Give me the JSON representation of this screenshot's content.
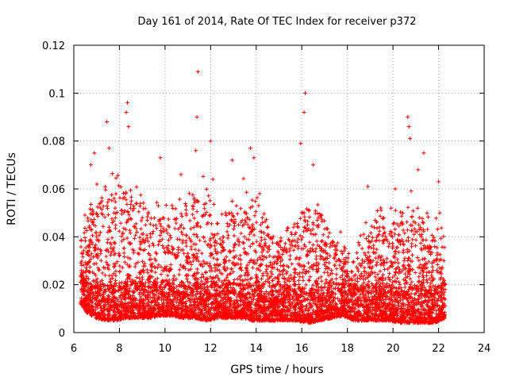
{
  "chart_data": {
    "type": "scatter",
    "title": "Day 161 of 2014, Rate Of TEC Index for receiver p372",
    "xlabel": "GPS time / hours",
    "ylabel": "ROTI / TECUs",
    "xlim": [
      6,
      24
    ],
    "ylim": [
      0,
      0.12
    ],
    "x_ticks": [
      6,
      8,
      10,
      12,
      14,
      16,
      18,
      20,
      22,
      24
    ],
    "x_tick_labels": [
      "6",
      "8",
      "10",
      "12",
      "14",
      "16",
      "18",
      "20",
      "22",
      "24"
    ],
    "y_ticks": [
      0,
      0.02,
      0.04,
      0.06,
      0.08,
      0.1,
      0.12
    ],
    "y_tick_labels": [
      "0",
      "0.02",
      "0.04",
      "0.06",
      "0.08",
      "0.1",
      "0.12"
    ],
    "grid": true,
    "marker": "+",
    "marker_color": "#ff0000",
    "data_x_range": [
      6.3,
      22.3
    ],
    "envelope": {
      "x": [
        6.3,
        6.6,
        7.0,
        7.4,
        7.8,
        8.3,
        8.8,
        9.3,
        9.8,
        10.3,
        10.8,
        11.3,
        11.8,
        12.3,
        12.8,
        13.3,
        13.8,
        14.3,
        14.8,
        15.3,
        15.8,
        16.3,
        16.8,
        17.3,
        17.8,
        18.3,
        18.8,
        19.3,
        19.8,
        20.3,
        20.8,
        21.3,
        21.8,
        22.3
      ],
      "typical_max": [
        0.04,
        0.05,
        0.055,
        0.06,
        0.062,
        0.065,
        0.055,
        0.05,
        0.052,
        0.05,
        0.05,
        0.055,
        0.06,
        0.045,
        0.05,
        0.06,
        0.055,
        0.05,
        0.035,
        0.04,
        0.045,
        0.06,
        0.055,
        0.04,
        0.035,
        0.03,
        0.045,
        0.05,
        0.045,
        0.05,
        0.055,
        0.05,
        0.045,
        0.04
      ],
      "floor": [
        0.012,
        0.008,
        0.006,
        0.005,
        0.005,
        0.006,
        0.006,
        0.006,
        0.007,
        0.007,
        0.006,
        0.006,
        0.005,
        0.006,
        0.006,
        0.006,
        0.005,
        0.005,
        0.005,
        0.005,
        0.005,
        0.004,
        0.005,
        0.006,
        0.007,
        0.005,
        0.005,
        0.005,
        0.005,
        0.004,
        0.004,
        0.004,
        0.004,
        0.006
      ]
    },
    "notable_points": [
      {
        "x": 11.45,
        "y": 0.109
      },
      {
        "x": 16.15,
        "y": 0.1
      },
      {
        "x": 8.35,
        "y": 0.096
      },
      {
        "x": 8.3,
        "y": 0.092
      },
      {
        "x": 11.4,
        "y": 0.09
      },
      {
        "x": 20.65,
        "y": 0.09
      },
      {
        "x": 7.45,
        "y": 0.088
      },
      {
        "x": 16.1,
        "y": 0.092
      },
      {
        "x": 20.7,
        "y": 0.086
      },
      {
        "x": 8.4,
        "y": 0.086
      },
      {
        "x": 20.75,
        "y": 0.081
      },
      {
        "x": 12.0,
        "y": 0.08
      },
      {
        "x": 15.95,
        "y": 0.079
      },
      {
        "x": 7.55,
        "y": 0.077
      },
      {
        "x": 11.35,
        "y": 0.076
      },
      {
        "x": 13.75,
        "y": 0.077
      },
      {
        "x": 21.35,
        "y": 0.075
      },
      {
        "x": 6.9,
        "y": 0.075
      },
      {
        "x": 9.8,
        "y": 0.073
      },
      {
        "x": 13.9,
        "y": 0.073
      },
      {
        "x": 12.95,
        "y": 0.072
      },
      {
        "x": 16.5,
        "y": 0.07
      },
      {
        "x": 6.75,
        "y": 0.07
      },
      {
        "x": 21.1,
        "y": 0.068
      },
      {
        "x": 10.7,
        "y": 0.066
      },
      {
        "x": 12.1,
        "y": 0.064
      },
      {
        "x": 22.0,
        "y": 0.063
      },
      {
        "x": 18.9,
        "y": 0.061
      },
      {
        "x": 20.1,
        "y": 0.06
      },
      {
        "x": 14.15,
        "y": 0.058
      },
      {
        "x": 22.05,
        "y": 0.05
      },
      {
        "x": 15.05,
        "y": 0.038
      },
      {
        "x": 17.7,
        "y": 0.042
      }
    ]
  }
}
